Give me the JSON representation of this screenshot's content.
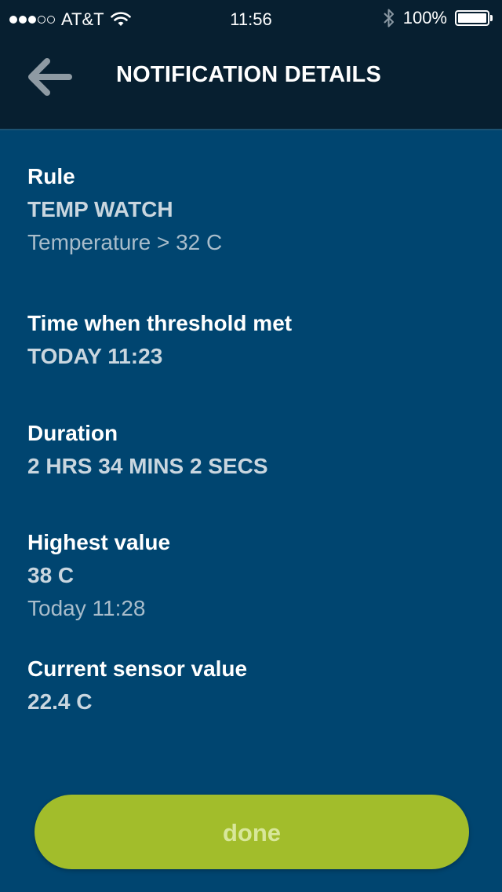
{
  "status_bar": {
    "carrier": "AT&T",
    "time": "11:56",
    "battery_percent": "100%",
    "battery_level": 1.0,
    "signal_bars_filled": 3,
    "signal_bars_total": 5
  },
  "nav": {
    "title": "NOTIFICATION DETAILS",
    "back_icon": "arrow-left-icon"
  },
  "details": {
    "rule": {
      "label": "Rule",
      "value": "TEMP WATCH",
      "condition": "Temperature > 32 C"
    },
    "threshold_time": {
      "label": "Time when threshold met",
      "value": "TODAY 11:23"
    },
    "duration": {
      "label": "Duration",
      "value": "2 HRS 34 MINS 2 SECS"
    },
    "highest_value": {
      "label": "Highest value",
      "value": "38 C",
      "time": "Today 11:28"
    },
    "current_value": {
      "label": "Current sensor value",
      "value": "22.4 C"
    }
  },
  "done_button": {
    "label": "done"
  },
  "colors": {
    "background": "#004570",
    "header": "#071f30",
    "button": "#a2bd2b",
    "button_text": "#d8e79a"
  }
}
